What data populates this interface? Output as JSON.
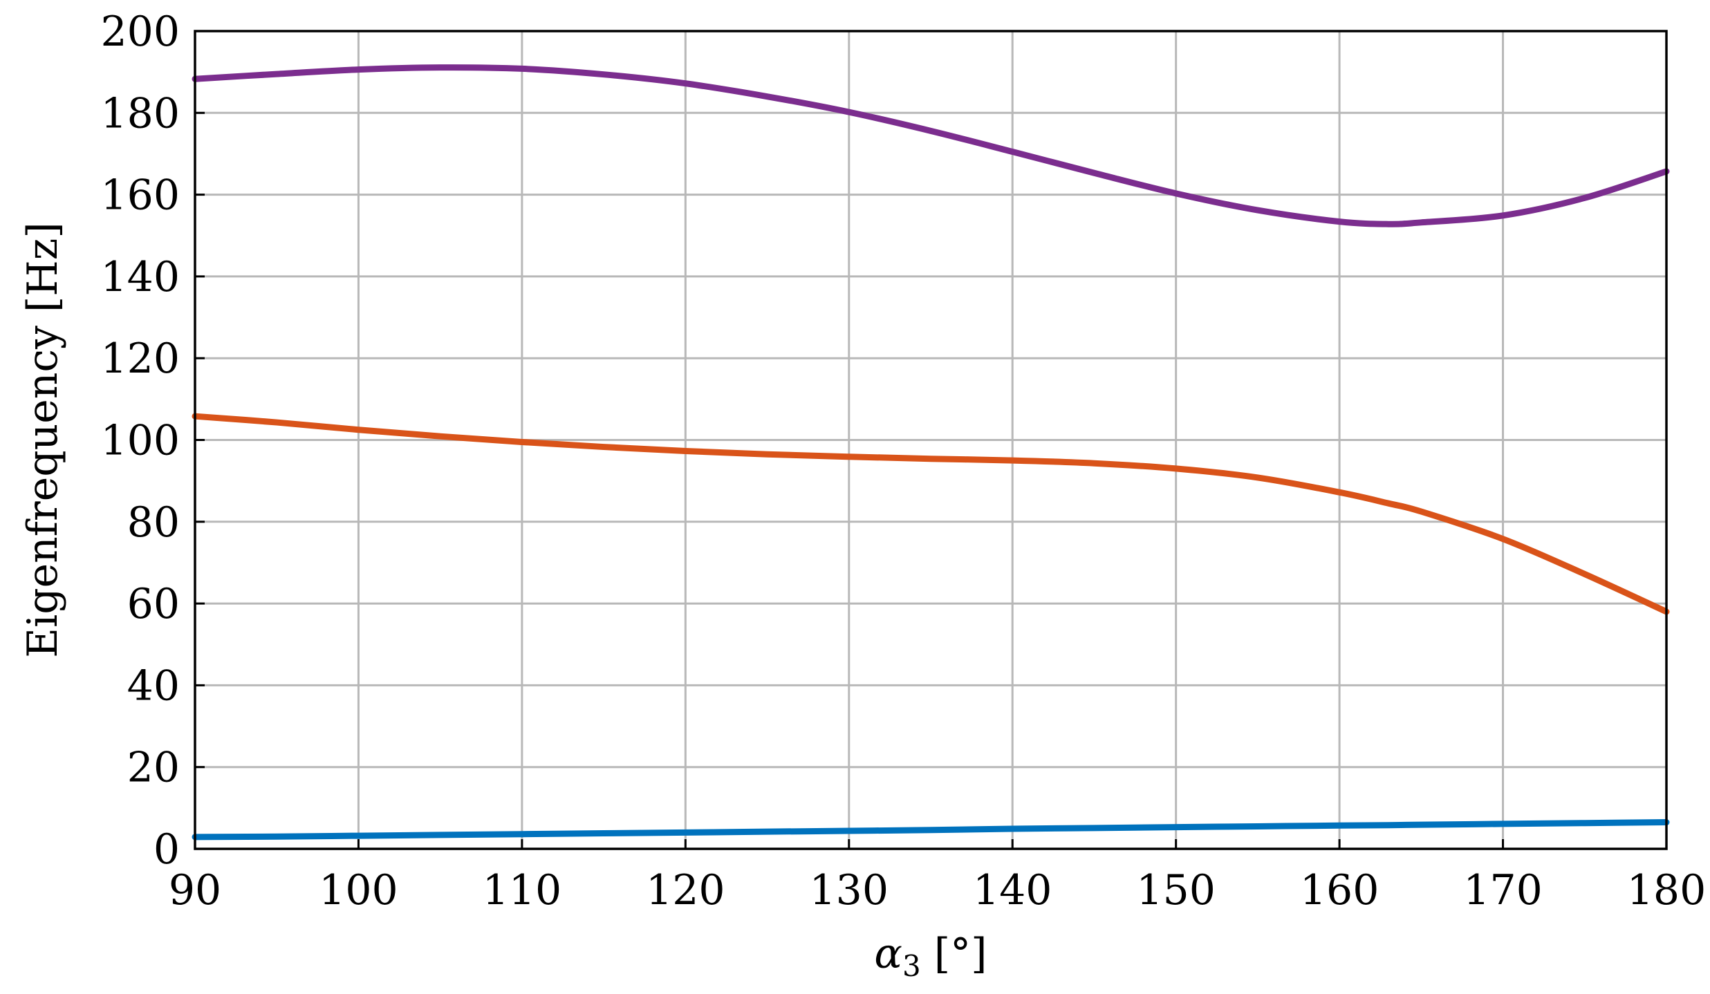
{
  "chart_data": {
    "type": "line",
    "title": "",
    "xlabel": {
      "symbol": "α",
      "subscript": "3",
      "unit": " [°]"
    },
    "ylabel": "Eigenfrequency [Hz]",
    "xlim": [
      90,
      180
    ],
    "ylim": [
      0,
      200
    ],
    "xticks": [
      90,
      100,
      110,
      120,
      130,
      140,
      150,
      160,
      170,
      180
    ],
    "yticks": [
      0,
      20,
      40,
      60,
      80,
      100,
      120,
      140,
      160,
      180,
      200
    ],
    "grid": true,
    "legend": null,
    "x": [
      90,
      95,
      100,
      105,
      110,
      115,
      120,
      125,
      130,
      135,
      140,
      145,
      150,
      155,
      160,
      163,
      165,
      170,
      175,
      180
    ],
    "series": [
      {
        "color": "#7b2d8e",
        "values": [
          188.3,
          189.5,
          190.6,
          191.1,
          190.8,
          189.4,
          187.2,
          184.0,
          180.2,
          175.6,
          170.5,
          165.3,
          160.3,
          156.2,
          153.4,
          152.8,
          153.2,
          154.9,
          159.2,
          165.7
        ]
      },
      {
        "color": "#d95319",
        "values": [
          105.8,
          104.3,
          102.5,
          100.9,
          99.5,
          98.3,
          97.3,
          96.5,
          95.9,
          95.4,
          95.0,
          94.3,
          93.0,
          90.8,
          87.2,
          84.5,
          82.5,
          75.8,
          67.2,
          58.0
        ]
      },
      {
        "color": "#0072bd",
        "values": [
          2.9,
          3.0,
          3.2,
          3.4,
          3.6,
          3.8,
          4.0,
          4.2,
          4.4,
          4.6,
          4.9,
          5.1,
          5.3,
          5.5,
          5.7,
          5.8,
          5.9,
          6.1,
          6.3,
          6.5
        ]
      }
    ]
  }
}
